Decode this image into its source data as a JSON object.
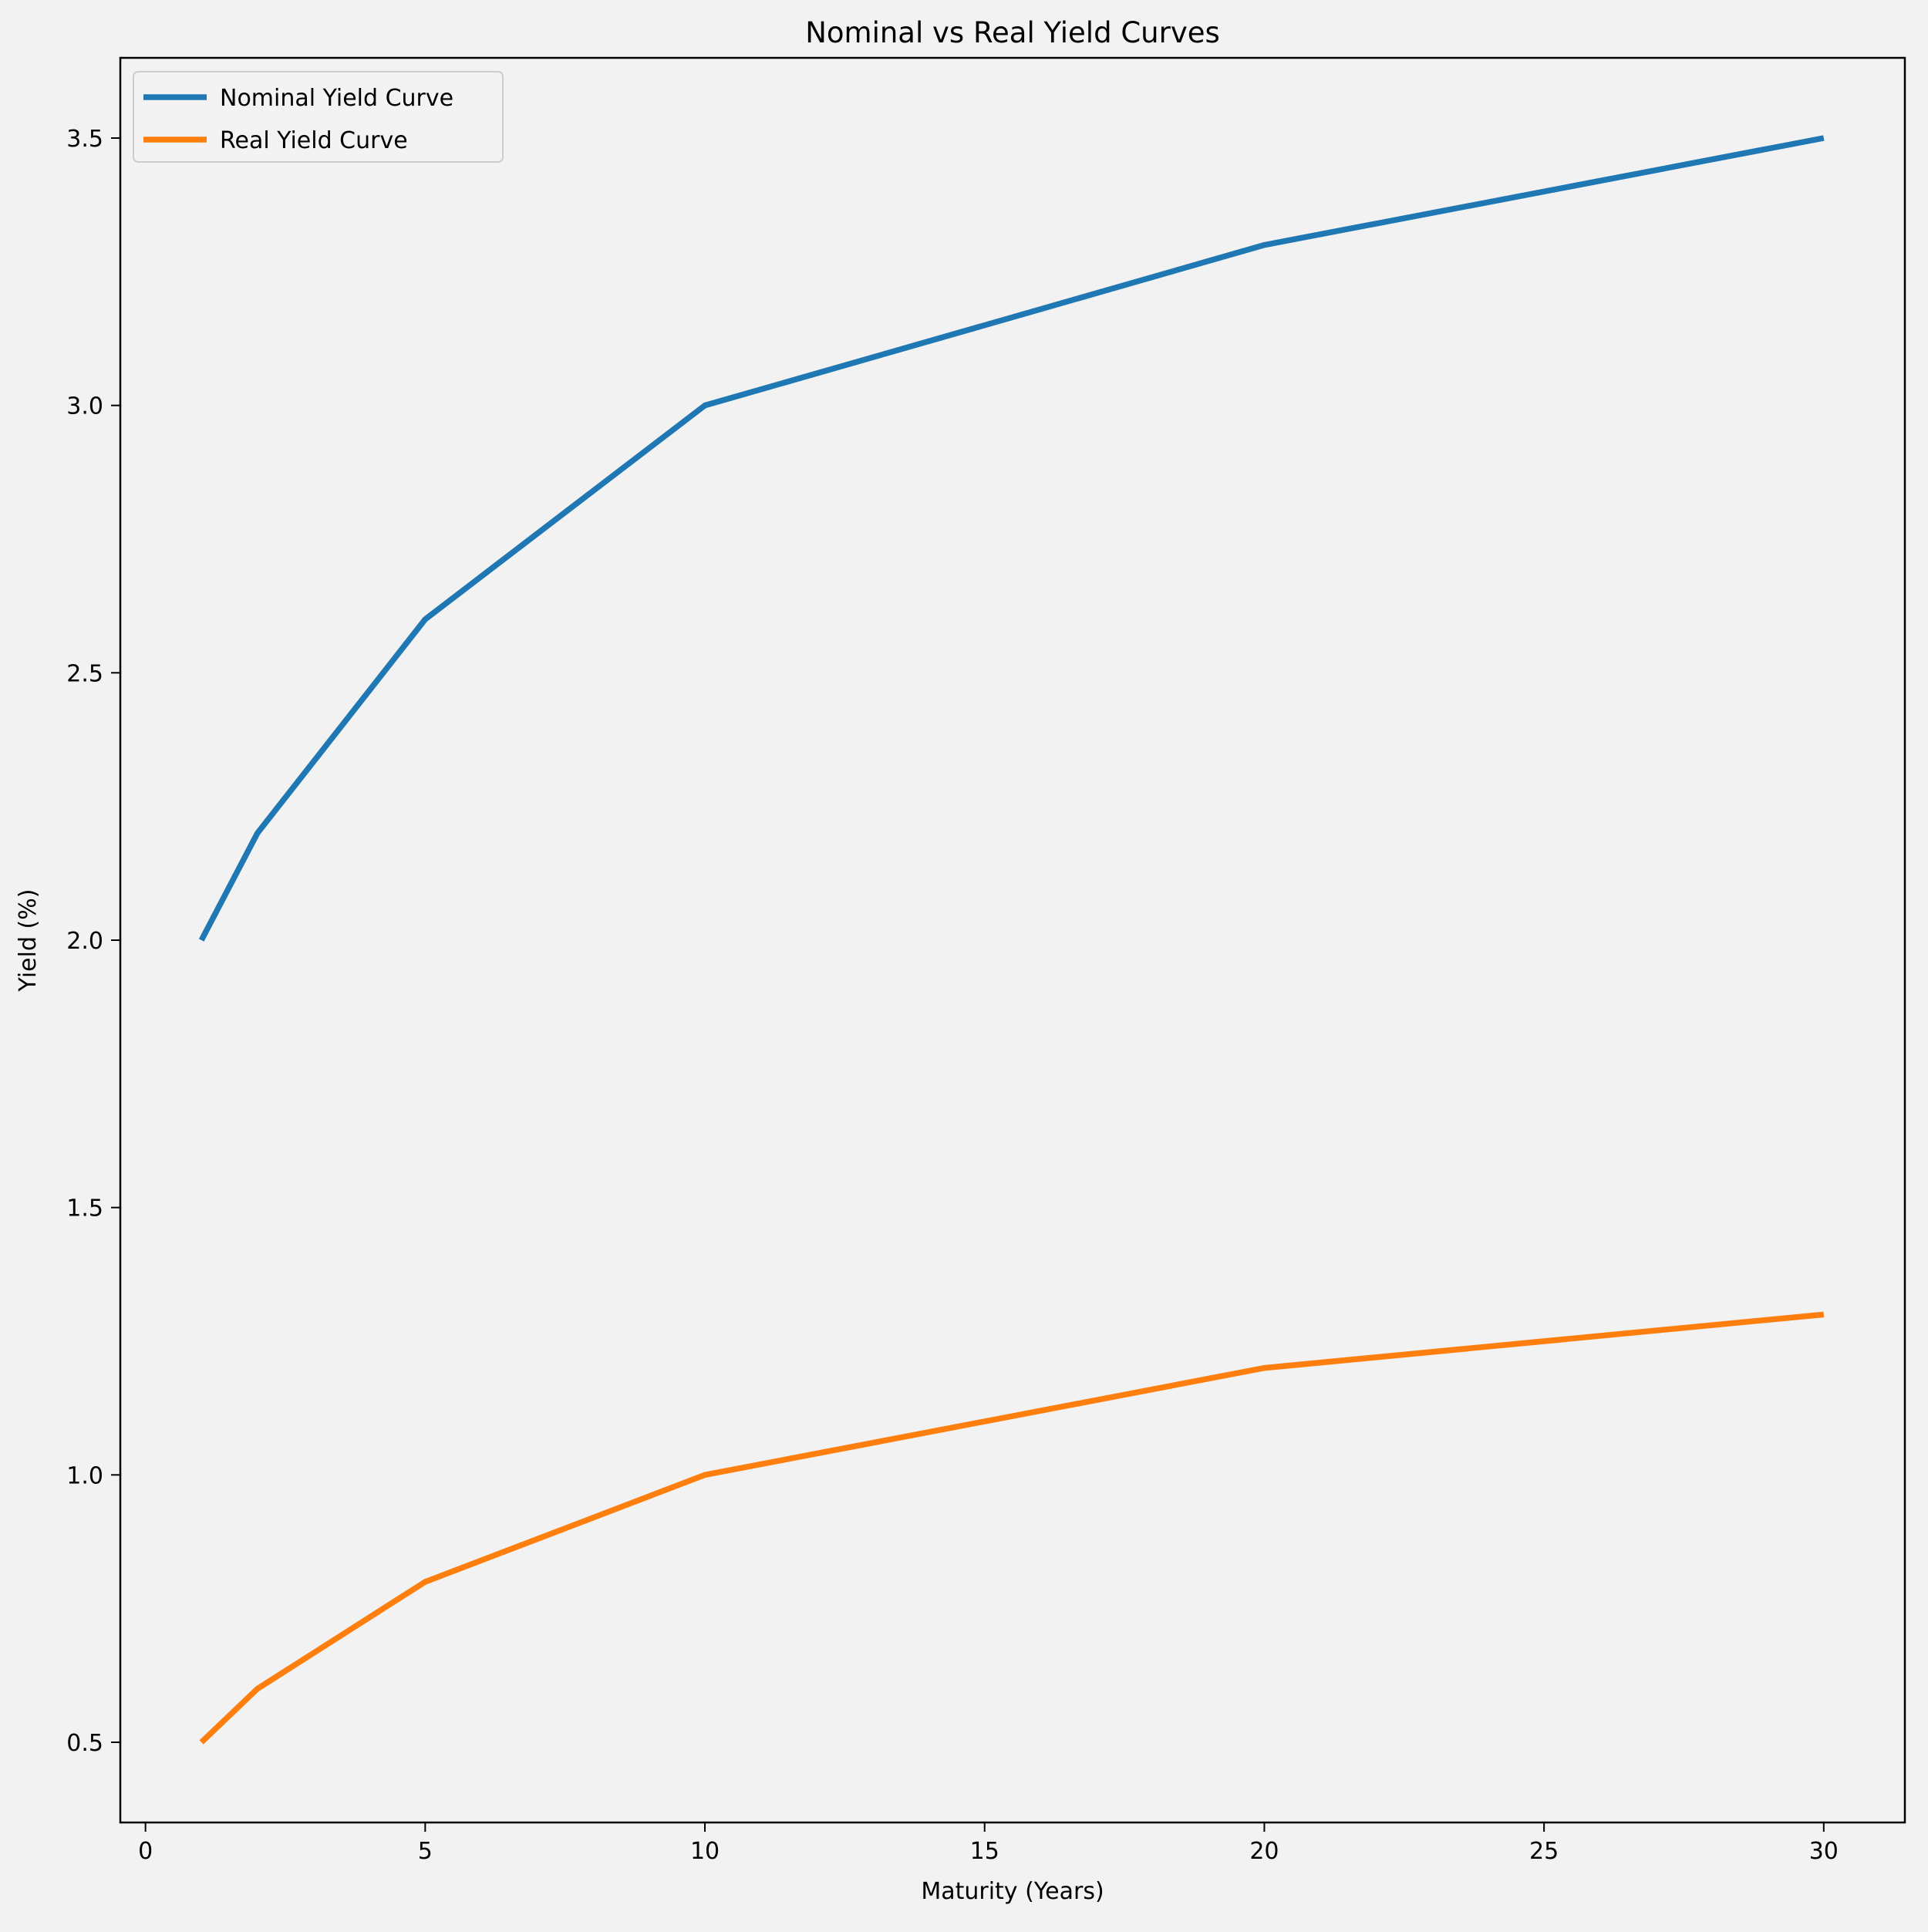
{
  "chart_data": {
    "type": "line",
    "title": "Nominal vs Real Yield Curves",
    "xlabel": "Maturity (Years)",
    "ylabel": "Yield (%)",
    "xlim": [
      -0.45,
      31.45
    ],
    "ylim": [
      0.35,
      3.65
    ],
    "x_ticks": [
      0,
      5,
      10,
      15,
      20,
      25,
      30
    ],
    "x_tick_labels": [
      "0",
      "5",
      "10",
      "15",
      "20",
      "25",
      "30"
    ],
    "y_ticks": [
      0.5,
      1.0,
      1.5,
      2.0,
      2.5,
      3.0,
      3.5
    ],
    "y_tick_labels": [
      "0.5",
      "1.0",
      "1.5",
      "2.0",
      "2.5",
      "3.0",
      "3.5"
    ],
    "grid": false,
    "legend_position": "top-left",
    "x": [
      1,
      2,
      5,
      10,
      20,
      30
    ],
    "series": [
      {
        "name": "Nominal Yield Curve",
        "color": "#1f77b4",
        "values": [
          2.0,
          2.2,
          2.6,
          3.0,
          3.3,
          3.5
        ]
      },
      {
        "name": "Real Yield Curve",
        "color": "#ff7f0e",
        "values": [
          0.5,
          0.6,
          0.8,
          1.0,
          1.2,
          1.3
        ]
      }
    ]
  }
}
